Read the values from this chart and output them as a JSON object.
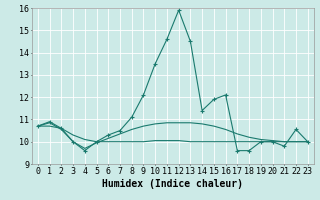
{
  "title": "",
  "xlabel": "Humidex (Indice chaleur)",
  "x": [
    0,
    1,
    2,
    3,
    4,
    5,
    6,
    7,
    8,
    9,
    10,
    11,
    12,
    13,
    14,
    15,
    16,
    17,
    18,
    19,
    20,
    21,
    22,
    23
  ],
  "line1": [
    10.7,
    10.9,
    10.6,
    10.0,
    9.6,
    10.0,
    10.3,
    10.5,
    11.1,
    12.1,
    13.5,
    14.6,
    15.9,
    14.5,
    11.4,
    11.9,
    12.1,
    9.6,
    9.6,
    10.0,
    10.0,
    9.8,
    10.55,
    10.0
  ],
  "line2": [
    10.7,
    10.85,
    10.55,
    10.0,
    9.7,
    9.95,
    10.15,
    10.35,
    10.55,
    10.7,
    10.8,
    10.85,
    10.85,
    10.85,
    10.8,
    10.7,
    10.55,
    10.35,
    10.2,
    10.1,
    10.05,
    10.0,
    10.0,
    10.0
  ],
  "line3": [
    10.7,
    10.7,
    10.6,
    10.3,
    10.1,
    10.0,
    10.0,
    10.0,
    10.0,
    10.0,
    10.05,
    10.05,
    10.05,
    10.0,
    10.0,
    10.0,
    10.0,
    10.0,
    10.0,
    10.0,
    10.0,
    10.0,
    10.0,
    10.0
  ],
  "ylim": [
    9,
    16
  ],
  "xlim_min": -0.5,
  "xlim_max": 23.5,
  "yticks": [
    9,
    10,
    11,
    12,
    13,
    14,
    15,
    16
  ],
  "xticks": [
    0,
    1,
    2,
    3,
    4,
    5,
    6,
    7,
    8,
    9,
    10,
    11,
    12,
    13,
    14,
    15,
    16,
    17,
    18,
    19,
    20,
    21,
    22,
    23
  ],
  "line_color": "#1a7a6e",
  "bg_color": "#cceae7",
  "grid_color": "#ffffff",
  "tick_fontsize": 6,
  "label_fontsize": 7,
  "marker": "+",
  "markersize": 3.5,
  "linewidth": 0.8
}
